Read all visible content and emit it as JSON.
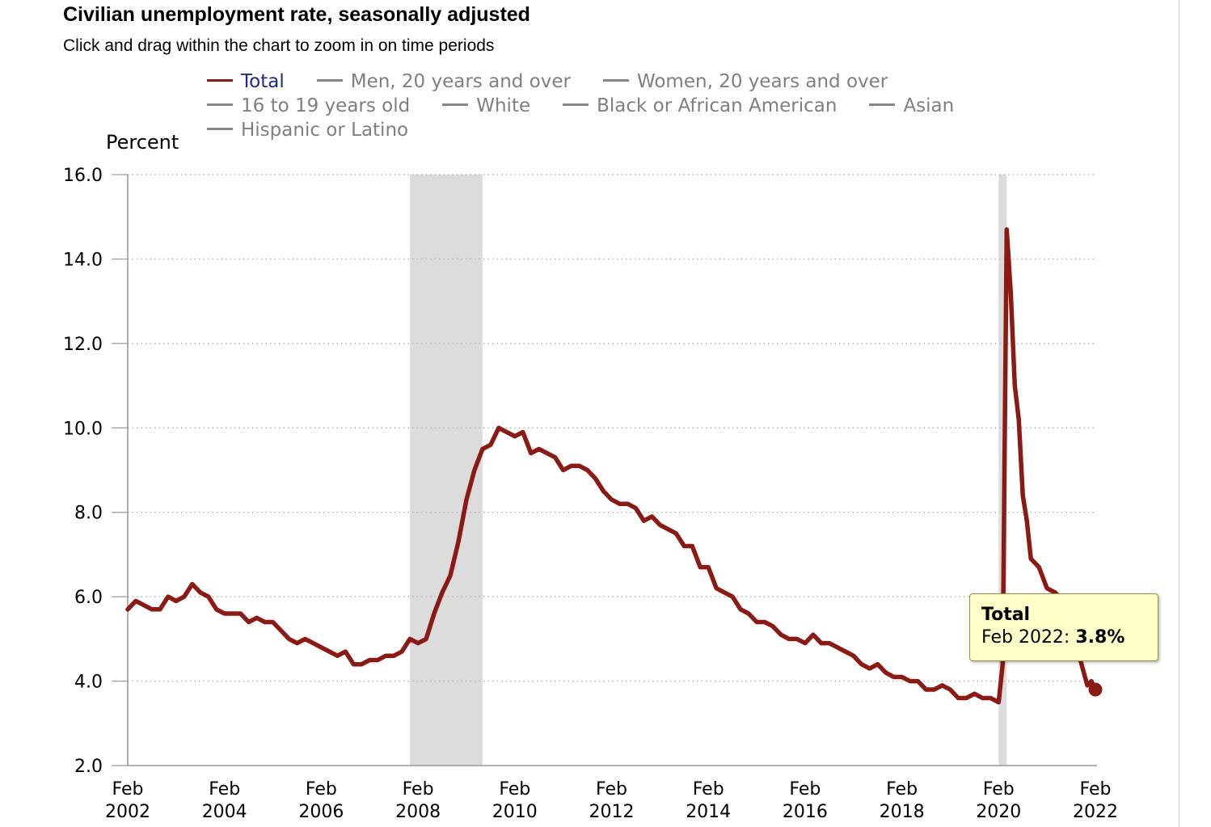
{
  "header": {
    "title": "Civilian unemployment rate, seasonally adjusted",
    "subtitle": "Click and drag within the chart to zoom in on time periods"
  },
  "legend": [
    [
      "Total",
      "Men, 20 years and over",
      "Women, 20 years and over"
    ],
    [
      "16 to 19 years old",
      "White",
      "Black or African American",
      "Asian"
    ],
    [
      "Hispanic or Latino"
    ]
  ],
  "colors": {
    "series": "#8b1a14",
    "inactive": "#888888",
    "recession": "#dcdcdc"
  },
  "tooltip": {
    "title": "Total",
    "date": "Feb 2022:",
    "value": "3.8%"
  },
  "chart_data": {
    "type": "line",
    "ylabel": "Percent",
    "ylim": [
      2.0,
      16.0
    ],
    "yticks": [
      "2.0",
      "4.0",
      "6.0",
      "8.0",
      "10.0",
      "12.0",
      "14.0",
      "16.0"
    ],
    "xlim": [
      "2002-02",
      "2022-02"
    ],
    "xticks": [
      [
        "Feb",
        "2002"
      ],
      [
        "Feb",
        "2004"
      ],
      [
        "Feb",
        "2006"
      ],
      [
        "Feb",
        "2008"
      ],
      [
        "Feb",
        "2010"
      ],
      [
        "Feb",
        "2012"
      ],
      [
        "Feb",
        "2014"
      ],
      [
        "Feb",
        "2016"
      ],
      [
        "Feb",
        "2018"
      ],
      [
        "Feb",
        "2020"
      ],
      [
        "Feb",
        "2022"
      ]
    ],
    "grid": "horizontal-dotted",
    "legend_position": "top",
    "recessions": [
      [
        "2007-12",
        "2009-06"
      ],
      [
        "2020-02",
        "2020-04"
      ]
    ],
    "series": [
      {
        "name": "Total",
        "points": [
          [
            "2002-02",
            5.7
          ],
          [
            "2002-04",
            5.9
          ],
          [
            "2002-06",
            5.8
          ],
          [
            "2002-08",
            5.7
          ],
          [
            "2002-10",
            5.7
          ],
          [
            "2002-12",
            6.0
          ],
          [
            "2003-02",
            5.9
          ],
          [
            "2003-04",
            6.0
          ],
          [
            "2003-06",
            6.3
          ],
          [
            "2003-08",
            6.1
          ],
          [
            "2003-10",
            6.0
          ],
          [
            "2003-12",
            5.7
          ],
          [
            "2004-02",
            5.6
          ],
          [
            "2004-04",
            5.6
          ],
          [
            "2004-06",
            5.6
          ],
          [
            "2004-08",
            5.4
          ],
          [
            "2004-10",
            5.5
          ],
          [
            "2004-12",
            5.4
          ],
          [
            "2005-02",
            5.4
          ],
          [
            "2005-04",
            5.2
          ],
          [
            "2005-06",
            5.0
          ],
          [
            "2005-08",
            4.9
          ],
          [
            "2005-10",
            5.0
          ],
          [
            "2005-12",
            4.9
          ],
          [
            "2006-02",
            4.8
          ],
          [
            "2006-04",
            4.7
          ],
          [
            "2006-06",
            4.6
          ],
          [
            "2006-08",
            4.7
          ],
          [
            "2006-10",
            4.4
          ],
          [
            "2006-12",
            4.4
          ],
          [
            "2007-02",
            4.5
          ],
          [
            "2007-04",
            4.5
          ],
          [
            "2007-06",
            4.6
          ],
          [
            "2007-08",
            4.6
          ],
          [
            "2007-10",
            4.7
          ],
          [
            "2007-12",
            5.0
          ],
          [
            "2008-02",
            4.9
          ],
          [
            "2008-04",
            5.0
          ],
          [
            "2008-06",
            5.6
          ],
          [
            "2008-08",
            6.1
          ],
          [
            "2008-10",
            6.5
          ],
          [
            "2008-12",
            7.3
          ],
          [
            "2009-02",
            8.3
          ],
          [
            "2009-04",
            9.0
          ],
          [
            "2009-06",
            9.5
          ],
          [
            "2009-08",
            9.6
          ],
          [
            "2009-10",
            10.0
          ],
          [
            "2009-12",
            9.9
          ],
          [
            "2010-02",
            9.8
          ],
          [
            "2010-04",
            9.9
          ],
          [
            "2010-06",
            9.4
          ],
          [
            "2010-08",
            9.5
          ],
          [
            "2010-10",
            9.4
          ],
          [
            "2010-12",
            9.3
          ],
          [
            "2011-02",
            9.0
          ],
          [
            "2011-04",
            9.1
          ],
          [
            "2011-06",
            9.1
          ],
          [
            "2011-08",
            9.0
          ],
          [
            "2011-10",
            8.8
          ],
          [
            "2011-12",
            8.5
          ],
          [
            "2012-02",
            8.3
          ],
          [
            "2012-04",
            8.2
          ],
          [
            "2012-06",
            8.2
          ],
          [
            "2012-08",
            8.1
          ],
          [
            "2012-10",
            7.8
          ],
          [
            "2012-12",
            7.9
          ],
          [
            "2013-02",
            7.7
          ],
          [
            "2013-04",
            7.6
          ],
          [
            "2013-06",
            7.5
          ],
          [
            "2013-08",
            7.2
          ],
          [
            "2013-10",
            7.2
          ],
          [
            "2013-12",
            6.7
          ],
          [
            "2014-02",
            6.7
          ],
          [
            "2014-04",
            6.2
          ],
          [
            "2014-06",
            6.1
          ],
          [
            "2014-08",
            6.0
          ],
          [
            "2014-10",
            5.7
          ],
          [
            "2014-12",
            5.6
          ],
          [
            "2015-02",
            5.4
          ],
          [
            "2015-04",
            5.4
          ],
          [
            "2015-06",
            5.3
          ],
          [
            "2015-08",
            5.1
          ],
          [
            "2015-10",
            5.0
          ],
          [
            "2015-12",
            5.0
          ],
          [
            "2016-02",
            4.9
          ],
          [
            "2016-04",
            5.1
          ],
          [
            "2016-06",
            4.9
          ],
          [
            "2016-08",
            4.9
          ],
          [
            "2016-10",
            4.8
          ],
          [
            "2016-12",
            4.7
          ],
          [
            "2017-02",
            4.6
          ],
          [
            "2017-04",
            4.4
          ],
          [
            "2017-06",
            4.3
          ],
          [
            "2017-08",
            4.4
          ],
          [
            "2017-10",
            4.2
          ],
          [
            "2017-12",
            4.1
          ],
          [
            "2018-02",
            4.1
          ],
          [
            "2018-04",
            4.0
          ],
          [
            "2018-06",
            4.0
          ],
          [
            "2018-08",
            3.8
          ],
          [
            "2018-10",
            3.8
          ],
          [
            "2018-12",
            3.9
          ],
          [
            "2019-02",
            3.8
          ],
          [
            "2019-04",
            3.6
          ],
          [
            "2019-06",
            3.6
          ],
          [
            "2019-08",
            3.7
          ],
          [
            "2019-10",
            3.6
          ],
          [
            "2019-12",
            3.6
          ],
          [
            "2020-02",
            3.5
          ],
          [
            "2020-03",
            4.4
          ],
          [
            "2020-04",
            14.7
          ],
          [
            "2020-05",
            13.2
          ],
          [
            "2020-06",
            11.0
          ],
          [
            "2020-07",
            10.2
          ],
          [
            "2020-08",
            8.4
          ],
          [
            "2020-09",
            7.8
          ],
          [
            "2020-10",
            6.9
          ],
          [
            "2020-12",
            6.7
          ],
          [
            "2021-02",
            6.2
          ],
          [
            "2021-04",
            6.1
          ],
          [
            "2021-06",
            5.9
          ],
          [
            "2021-08",
            5.2
          ],
          [
            "2021-10",
            4.6
          ],
          [
            "2021-12",
            3.9
          ],
          [
            "2022-01",
            4.0
          ],
          [
            "2022-02",
            3.8
          ]
        ]
      }
    ],
    "highlight": [
      "2022-02",
      3.8
    ]
  }
}
